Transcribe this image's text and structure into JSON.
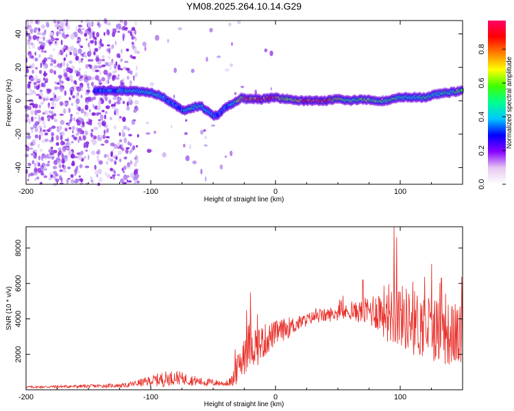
{
  "chart_data": [
    {
      "type": "heatmap",
      "title": "YM08.2025.264.10.14.G29",
      "xlabel": "Height of straight line (km)",
      "ylabel": "Frequency (Hz)",
      "xlim": [
        -200,
        150
      ],
      "ylim": [
        -50,
        48
      ],
      "xticks": [
        -200,
        -100,
        0,
        100
      ],
      "yticks": [
        -40,
        -20,
        0,
        20,
        40
      ],
      "colorbar": {
        "label": "Normalized spectral amplitude",
        "range": [
          0,
          0.97
        ],
        "ticks": [
          "0.0",
          "0.2",
          "0.4",
          "0.6",
          "0.8"
        ],
        "tick_values": [
          0,
          0.2,
          0.4,
          0.6,
          0.8
        ],
        "colors": [
          "#ffffff",
          "#e6c8f0",
          "#8800ff",
          "#0000ff",
          "#00c8ff",
          "#00ff90",
          "#40ff00",
          "#ffff00",
          "#ff8000",
          "#ff0000",
          "#ff0066"
        ]
      },
      "ridge": {
        "x": [
          -145,
          -130,
          -115,
          -100,
          -92,
          -86,
          -82,
          -78,
          -72,
          -66,
          -60,
          -55,
          -50,
          -45,
          -40,
          -35,
          -30,
          -27,
          -24,
          -20,
          -10,
          0,
          10,
          20,
          30,
          40,
          50,
          60,
          70,
          80,
          90,
          100,
          110,
          120,
          130,
          140,
          150
        ],
        "y": [
          6,
          6,
          6,
          5,
          3,
          0,
          -2,
          -4,
          -6,
          -4,
          -3,
          -6,
          -9,
          -8,
          -4,
          -2,
          0,
          2,
          1,
          1,
          1,
          2,
          1,
          0,
          0,
          0,
          1,
          0,
          1,
          0,
          0,
          2,
          2,
          2,
          4,
          5,
          6
        ],
        "amplitude": [
          0.35,
          0.4,
          0.45,
          0.45,
          0.45,
          0.4,
          0.35,
          0.35,
          0.45,
          0.5,
          0.5,
          0.45,
          0.4,
          0.35,
          0.4,
          0.45,
          0.6,
          0.7,
          0.9,
          0.9,
          0.9,
          0.85,
          0.6,
          0.8,
          0.9,
          0.85,
          0.7,
          0.6,
          0.65,
          0.6,
          0.6,
          0.55,
          0.45,
          0.55,
          0.5,
          0.55,
          0.6
        ]
      }
    },
    {
      "type": "line",
      "xlabel": "Height of straight line (km)",
      "ylabel": "SNR (10 * v/v)",
      "xlim": [
        -200,
        150
      ],
      "ylim": [
        0,
        9200
      ],
      "xticks": [
        -200,
        -100,
        0,
        100
      ],
      "yticks": [
        2000,
        4000,
        6000,
        8000
      ],
      "color": "#e8312b",
      "envelope": {
        "x": [
          -200,
          -150,
          -120,
          -100,
          -90,
          -80,
          -60,
          -40,
          -35,
          -30,
          -25,
          -20,
          -15,
          -10,
          0,
          10,
          20,
          30,
          40,
          50,
          60,
          70,
          80,
          90,
          95,
          100,
          110,
          120,
          130,
          140,
          150
        ],
        "y": [
          150,
          200,
          250,
          500,
          600,
          700,
          450,
          350,
          500,
          1200,
          2200,
          2600,
          2500,
          2700,
          3200,
          3500,
          3800,
          4100,
          4200,
          4300,
          4400,
          4400,
          4500,
          4400,
          4400,
          4200,
          3800,
          3600,
          3400,
          3100,
          3000
        ],
        "noise": [
          60,
          100,
          120,
          300,
          450,
          400,
          250,
          150,
          300,
          900,
          1400,
          1300,
          1200,
          1000,
          700,
          600,
          400,
          350,
          400,
          400,
          450,
          700,
          1100,
          1700,
          2000,
          1800,
          1900,
          1900,
          1900,
          1800,
          1700
        ]
      },
      "peaks": [
        {
          "x": -20,
          "y": 5500
        },
        {
          "x": 70,
          "y": 6200
        },
        {
          "x": 95,
          "y": 9200
        },
        {
          "x": 97,
          "y": 8600
        },
        {
          "x": 110,
          "y": 6100
        },
        {
          "x": 125,
          "y": 7100
        },
        {
          "x": 133,
          "y": 6300
        }
      ]
    }
  ]
}
